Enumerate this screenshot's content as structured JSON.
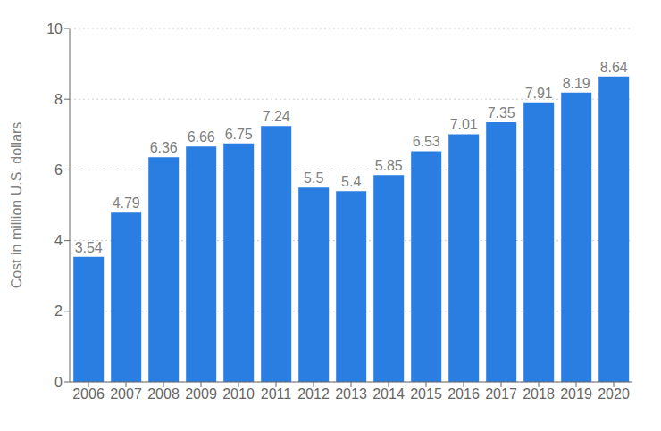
{
  "chart_data": {
    "type": "bar",
    "categories": [
      "2006",
      "2007",
      "2008",
      "2009",
      "2010",
      "2011",
      "2012",
      "2013",
      "2014",
      "2015",
      "2016",
      "2017",
      "2018",
      "2019",
      "2020"
    ],
    "values": [
      3.54,
      4.79,
      6.36,
      6.66,
      6.75,
      7.24,
      5.5,
      5.4,
      5.85,
      6.53,
      7.01,
      7.35,
      7.91,
      8.19,
      8.64
    ],
    "color": "#2a7de1",
    "y_label": "Cost in million U.S. dollars",
    "ylim": [
      0,
      10
    ],
    "yticks": [
      0,
      2,
      4,
      6,
      8,
      10
    ],
    "grid": true,
    "data_labels": true
  }
}
